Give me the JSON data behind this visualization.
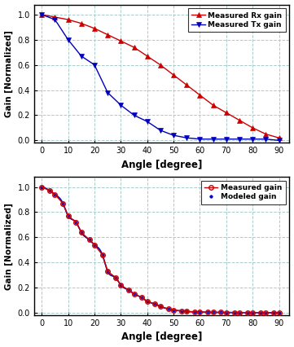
{
  "angles_top": [
    0,
    5,
    10,
    15,
    20,
    25,
    30,
    35,
    40,
    45,
    50,
    55,
    60,
    65,
    70,
    75,
    80,
    85,
    90
  ],
  "rx_gain": [
    1.0,
    0.98,
    0.96,
    0.93,
    0.89,
    0.84,
    0.79,
    0.74,
    0.67,
    0.6,
    0.52,
    0.44,
    0.36,
    0.28,
    0.22,
    0.16,
    0.1,
    0.05,
    0.02
  ],
  "tx_gain": [
    1.0,
    0.96,
    0.8,
    0.67,
    0.6,
    0.38,
    0.28,
    0.2,
    0.15,
    0.08,
    0.04,
    0.02,
    0.01,
    0.01,
    0.01,
    0.01,
    0.01,
    0.01,
    0.0
  ],
  "angles_bottom": [
    0,
    3,
    5,
    8,
    10,
    13,
    15,
    18,
    20,
    23,
    25,
    28,
    30,
    33,
    35,
    38,
    40,
    43,
    45,
    48,
    50,
    53,
    55,
    58,
    60,
    63,
    65,
    68,
    70,
    73,
    75,
    78,
    80,
    83,
    85,
    88,
    90
  ],
  "measured_gain": [
    1.0,
    0.97,
    0.94,
    0.87,
    0.77,
    0.72,
    0.64,
    0.58,
    0.54,
    0.46,
    0.33,
    0.28,
    0.22,
    0.18,
    0.15,
    0.12,
    0.09,
    0.07,
    0.05,
    0.03,
    0.02,
    0.015,
    0.01,
    0.007,
    0.005,
    0.004,
    0.003,
    0.003,
    0.002,
    0.002,
    0.001,
    0.001,
    0.001,
    0.001,
    0.001,
    0.0,
    0.0
  ],
  "modeled_gain": [
    1.0,
    0.97,
    0.94,
    0.87,
    0.77,
    0.72,
    0.64,
    0.58,
    0.54,
    0.46,
    0.33,
    0.28,
    0.22,
    0.18,
    0.15,
    0.12,
    0.09,
    0.07,
    0.05,
    0.03,
    0.02,
    0.015,
    0.01,
    0.007,
    0.005,
    0.004,
    0.003,
    0.003,
    0.002,
    0.002,
    0.001,
    0.001,
    0.001,
    0.001,
    0.001,
    0.0,
    0.0
  ],
  "rx_color": "#cc0000",
  "tx_color": "#0000bb",
  "measured_color": "#cc0000",
  "modeled_color": "#0000bb",
  "xlabel": "Angle [degree]",
  "ylabel": "Gain [Normalized]",
  "legend1_labels": [
    "Measured Rx gain",
    "Measured Tx gain"
  ],
  "legend2_labels": [
    "Measured gain",
    "Modeled gain"
  ],
  "ylim": [
    -0.02,
    1.08
  ],
  "xlim": [
    -3,
    94
  ],
  "xticks": [
    0,
    10,
    20,
    30,
    40,
    50,
    60,
    70,
    80,
    90
  ],
  "yticks": [
    0.0,
    0.2,
    0.4,
    0.6,
    0.8,
    1.0
  ],
  "grid_color": "#aacccc",
  "background_color": "#ffffff",
  "fig_width": 3.61,
  "fig_height": 4.26,
  "dpi": 100
}
